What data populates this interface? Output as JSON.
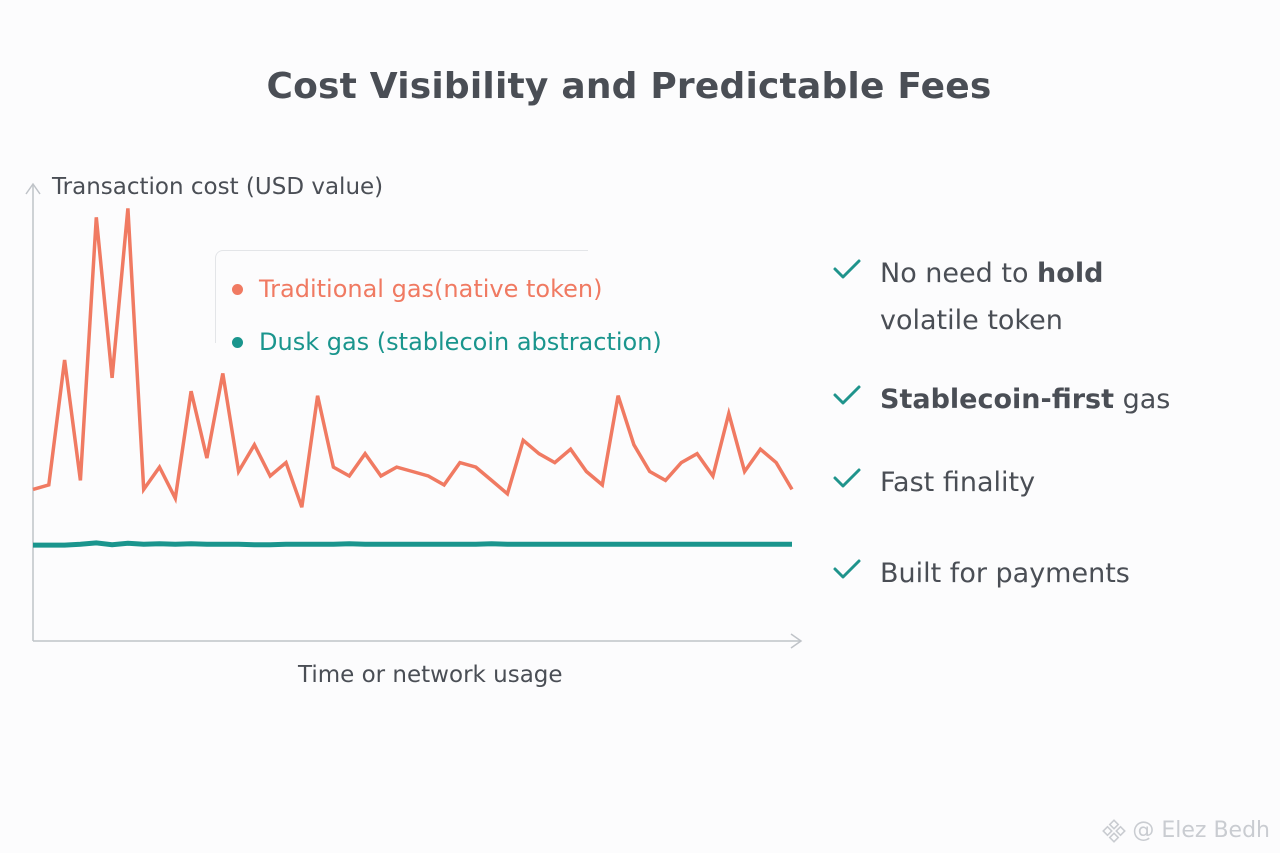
{
  "title": "Cost Visibility and Predictable Fees",
  "chart_data": {
    "type": "line",
    "ylabel": "Transaction cost (USD value)",
    "xlabel": "Time or network usage",
    "ylim": [
      0,
      100
    ],
    "grid": false,
    "legend_position": "top-left",
    "x": [
      0,
      1,
      2,
      3,
      4,
      5,
      6,
      7,
      8,
      9,
      10,
      11,
      12,
      13,
      14,
      15,
      16,
      17,
      18,
      19,
      20,
      21,
      22,
      23,
      24,
      25,
      26,
      27,
      28,
      29,
      30,
      31,
      32,
      33,
      34,
      35,
      36,
      37,
      38,
      39,
      40,
      41,
      42,
      43,
      44,
      45,
      46,
      47,
      48
    ],
    "series": [
      {
        "name": "Traditional gas(native token)",
        "color": "#f07a62",
        "values": [
          34,
          35,
          63,
          36,
          95,
          59,
          97,
          34,
          39,
          32,
          56,
          41,
          60,
          38,
          44,
          37,
          40,
          30,
          55,
          39,
          37,
          42,
          37,
          39,
          38,
          37,
          35,
          40,
          39,
          36,
          33,
          45,
          42,
          40,
          43,
          38,
          35,
          55,
          44,
          38,
          36,
          40,
          42,
          37,
          51,
          38,
          43,
          40,
          34
        ]
      },
      {
        "name": "Dusk gas (stablecoin abstraction)",
        "color": "#1a958d",
        "values": [
          21.5,
          21.5,
          21.5,
          21.7,
          22.0,
          21.6,
          21.9,
          21.7,
          21.8,
          21.7,
          21.8,
          21.7,
          21.7,
          21.7,
          21.6,
          21.6,
          21.7,
          21.7,
          21.7,
          21.7,
          21.8,
          21.7,
          21.7,
          21.7,
          21.7,
          21.7,
          21.7,
          21.7,
          21.7,
          21.8,
          21.7,
          21.7,
          21.7,
          21.7,
          21.7,
          21.7,
          21.7,
          21.7,
          21.7,
          21.7,
          21.7,
          21.7,
          21.7,
          21.7,
          21.7,
          21.7,
          21.7,
          21.7,
          21.7
        ]
      }
    ]
  },
  "benefits": [
    {
      "icon": "check-icon",
      "pre": "No need to ",
      "bold": "hold",
      "post": "",
      "line2": "volatile token"
    },
    {
      "icon": "check-icon",
      "pre": "",
      "bold": "Stablecoin-first",
      "post": " gas",
      "line2": ""
    },
    {
      "icon": "check-icon",
      "pre": "Fast finality",
      "bold": "",
      "post": "",
      "line2": ""
    },
    {
      "icon": "check-icon",
      "pre": "Built for payments",
      "bold": "",
      "post": "",
      "line2": ""
    }
  ],
  "colors": {
    "accent_check": "#1f948c",
    "axis": "#bfc3c8"
  },
  "watermark": {
    "text": "@ Elez Bedh",
    "icon": "binance-logo-icon"
  }
}
